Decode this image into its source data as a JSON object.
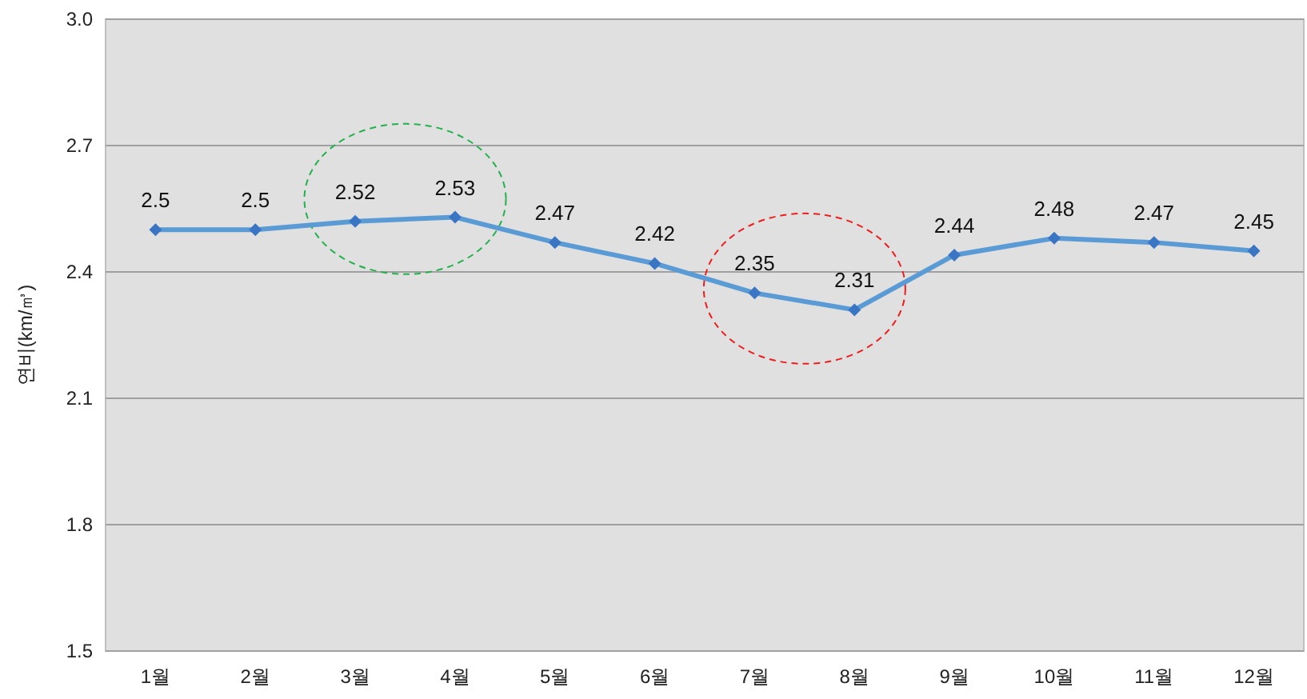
{
  "chart_data": {
    "type": "line",
    "ylabel": "연비(km/㎥)",
    "categories": [
      "1월",
      "2월",
      "3월",
      "4월",
      "5월",
      "6월",
      "7월",
      "8월",
      "9월",
      "10월",
      "11월",
      "12월"
    ],
    "series": [
      {
        "color": "#5b9bd5",
        "values": [
          2.5,
          2.5,
          2.52,
          2.53,
          2.47,
          2.42,
          2.35,
          2.31,
          2.44,
          2.48,
          2.47,
          2.45
        ]
      }
    ],
    "ylim": [
      1.5,
      3.0
    ],
    "yticks": [
      {
        "value": 1.5,
        "label": "1.5"
      },
      {
        "value": 1.8,
        "label": "1.8"
      },
      {
        "value": 2.1,
        "label": "2.1"
      },
      {
        "value": 2.4,
        "label": "2.4"
      },
      {
        "value": 2.7,
        "label": "2.7"
      },
      {
        "value": 3.0,
        "label": "3.0"
      }
    ],
    "grid": "y",
    "marker": "diamond",
    "data_labels": true
  }
}
